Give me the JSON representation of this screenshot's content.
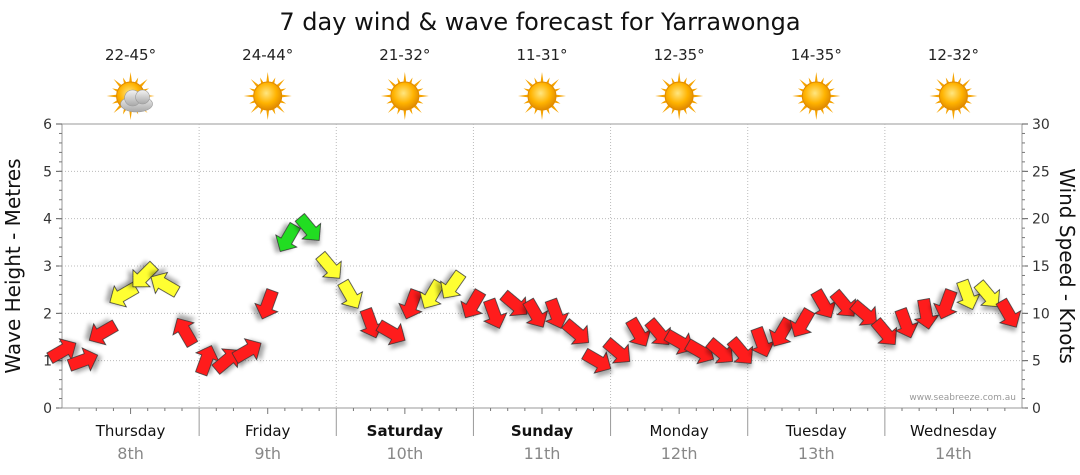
{
  "chart_data": {
    "type": "line",
    "title": "7 day wind & wave forecast for Yarrawonga",
    "ylabel_left": "Wave Height - Metres",
    "ylabel_right": "Wind Speed - Knots",
    "ylim_left": [
      0,
      6
    ],
    "ylim_right": [
      0,
      30
    ],
    "yticks_left": [
      "0",
      "1",
      "2",
      "3",
      "4",
      "5",
      "6"
    ],
    "yticks_right": [
      "0",
      "5",
      "10",
      "15",
      "20",
      "25",
      "30"
    ],
    "grid": true,
    "credit": "www.seabreeze.com.au",
    "days": [
      {
        "name": "Thursday",
        "date": "8th",
        "temp": "22-45°",
        "icon": "sun-cloud-icon",
        "bold": false
      },
      {
        "name": "Friday",
        "date": "9th",
        "temp": "24-44°",
        "icon": "sun-icon",
        "bold": false
      },
      {
        "name": "Saturday",
        "date": "10th",
        "temp": "21-32°",
        "icon": "sun-icon",
        "bold": true
      },
      {
        "name": "Sunday",
        "date": "11th",
        "temp": "11-31°",
        "icon": "sun-icon",
        "bold": true
      },
      {
        "name": "Monday",
        "date": "12th",
        "temp": "12-35°",
        "icon": "sun-icon",
        "bold": false
      },
      {
        "name": "Tuesday",
        "date": "13th",
        "temp": "14-35°",
        "icon": "sun-icon",
        "bold": false
      },
      {
        "name": "Wednesday",
        "date": "14th",
        "temp": "12-32°",
        "icon": "sun-icon",
        "bold": false
      }
    ],
    "colors": {
      "low": "#ff1a1a",
      "mid": "#ffff33",
      "high": "#22dd22",
      "outline": "#333333"
    },
    "series": [
      {
        "name": "Wind Speed - Knots",
        "axis": "right",
        "unit": "knots",
        "x_days": [
          0.0,
          0.15,
          0.3,
          0.45,
          0.6,
          0.75,
          0.9,
          1.05,
          1.2,
          1.35,
          1.5,
          1.65,
          1.8,
          1.95,
          2.1,
          2.25,
          2.4,
          2.55,
          2.7,
          2.85,
          3.0,
          3.15,
          3.3,
          3.45,
          3.6,
          3.75,
          3.9,
          4.05,
          4.2,
          4.35,
          4.5,
          4.65,
          4.8,
          4.95,
          5.1,
          5.25,
          5.4,
          5.55,
          5.7,
          5.85,
          6.0,
          6.15,
          6.3,
          6.45,
          6.6,
          6.75,
          6.9
        ],
        "values": [
          6,
          5,
          8,
          12,
          14,
          13,
          8,
          5,
          5,
          6,
          11,
          18,
          19,
          15,
          12,
          9,
          8,
          11,
          12,
          13,
          11,
          10,
          11,
          10,
          10,
          8,
          5,
          6,
          8,
          8,
          7,
          6,
          6,
          6,
          7,
          8,
          9,
          11,
          11,
          10,
          8,
          9,
          10,
          11,
          12,
          12,
          10
        ],
        "direction_deg": [
          240,
          250,
          60,
          60,
          45,
          120,
          150,
          200,
          230,
          240,
          20,
          30,
          320,
          320,
          330,
          340,
          300,
          20,
          30,
          35,
          30,
          340,
          310,
          330,
          340,
          310,
          300,
          310,
          330,
          320,
          300,
          300,
          310,
          320,
          340,
          30,
          30,
          330,
          320,
          310,
          320,
          340,
          350,
          20,
          340,
          320,
          330
        ]
      }
    ]
  }
}
